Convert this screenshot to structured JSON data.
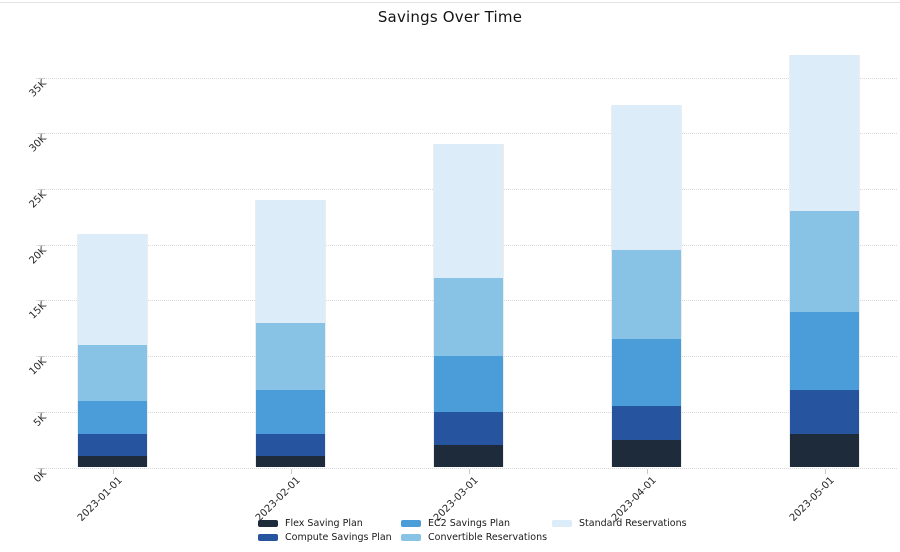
{
  "title": "Savings Over Time",
  "chart_data": {
    "type": "bar",
    "stacked": true,
    "title": "Savings Over Time",
    "xlabel": "",
    "ylabel": "",
    "categories": [
      "2023-01-01",
      "2023-02-01",
      "2023-03-01",
      "2023-04-01",
      "2023-05-01"
    ],
    "series": [
      {
        "name": "Flex Saving Plan",
        "color": "#1d2b3a",
        "values": [
          1000,
          1000,
          2000,
          2500,
          3000
        ]
      },
      {
        "name": "Compute Savings Plan",
        "color": "#27549e",
        "values": [
          2000,
          2000,
          3000,
          3000,
          4000
        ]
      },
      {
        "name": "EC2 Savings Plan",
        "color": "#4a9dd8",
        "values": [
          3000,
          4000,
          5000,
          6000,
          7000
        ]
      },
      {
        "name": "Convertible Reservations",
        "color": "#88c3e5",
        "values": [
          5000,
          6000,
          7000,
          8000,
          9000
        ]
      },
      {
        "name": "Standard Reservations",
        "color": "#dcecf9",
        "values": [
          10000,
          11000,
          12000,
          13000,
          14000
        ]
      }
    ],
    "stack_totals": [
      21000,
      24000,
      29000,
      32500,
      37000
    ],
    "y_ticks": [
      "0K",
      "5K",
      "10K",
      "15K",
      "20K",
      "25K",
      "30K",
      "35K"
    ],
    "y_tick_values": [
      0,
      5000,
      10000,
      15000,
      20000,
      25000,
      30000,
      35000
    ],
    "ylim": [
      0,
      39000
    ],
    "grid": "horizontal-dotted",
    "grid_color": "#d8d8d8",
    "tick_label_rotation_deg": 45,
    "legend_position": "bottom",
    "background_color": "#ffffff",
    "text_color": "#262626"
  }
}
